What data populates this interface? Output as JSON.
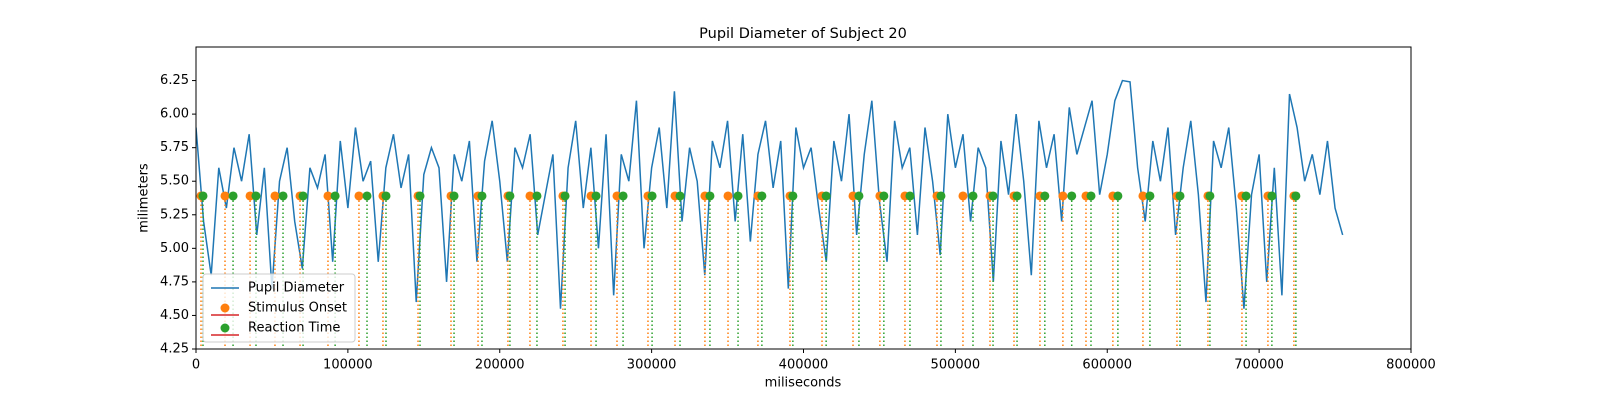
{
  "chart_data": {
    "type": "line",
    "title": "Pupil Diameter of Subject 20",
    "xlabel": "miliseconds",
    "ylabel": "milimeters",
    "xlim": [
      0,
      800000
    ],
    "ylim": [
      4.25,
      6.5
    ],
    "xticks": [
      0,
      100000,
      200000,
      300000,
      400000,
      500000,
      600000,
      700000,
      800000
    ],
    "yticks": [
      4.25,
      {
        "value": 4.5,
        "label": "4.50"
      },
      4.75,
      {
        "value": 5.0,
        "label": "5.00"
      },
      5.25,
      {
        "value": 5.5,
        "label": "5.50"
      },
      5.75,
      {
        "value": 6.0,
        "label": "6.00"
      },
      6.25
    ],
    "legend": "lower left",
    "baseline_color": "#d62728",
    "series": [
      {
        "name": "Pupil Diameter",
        "style": "line",
        "color": "#1f77b4",
        "x": [
          0,
          5000,
          10000,
          15000,
          20000,
          25000,
          30000,
          35000,
          40000,
          45000,
          50000,
          55000,
          60000,
          65000,
          70000,
          75000,
          80000,
          85000,
          90000,
          95000,
          100000,
          105000,
          110000,
          115000,
          120000,
          125000,
          130000,
          135000,
          140000,
          145000,
          150000,
          155000,
          160000,
          165000,
          170000,
          175000,
          180000,
          185000,
          190000,
          195000,
          200000,
          205000,
          210000,
          215000,
          220000,
          225000,
          230000,
          235000,
          240000,
          245000,
          250000,
          255000,
          260000,
          265000,
          270000,
          275000,
          280000,
          285000,
          290000,
          295000,
          300000,
          305000,
          310000,
          315000,
          320000,
          325000,
          330000,
          335000,
          340000,
          345000,
          350000,
          355000,
          360000,
          365000,
          370000,
          375000,
          380000,
          385000,
          390000,
          395000,
          400000,
          405000,
          410000,
          415000,
          420000,
          425000,
          430000,
          435000,
          440000,
          445000,
          450000,
          455000,
          460000,
          465000,
          470000,
          475000,
          480000,
          485000,
          490000,
          495000,
          500000,
          505000,
          510000,
          515000,
          520000,
          525000,
          530000,
          535000,
          540000,
          545000,
          550000,
          555000,
          560000,
          565000,
          570000,
          575000,
          580000,
          585000,
          590000,
          595000,
          600000,
          605000,
          610000,
          615000,
          620000,
          625000,
          630000,
          635000,
          640000,
          645000,
          650000,
          655000,
          660000,
          665000,
          670000,
          675000,
          680000,
          685000,
          690000,
          695000,
          700000,
          705000,
          710000,
          715000,
          720000,
          725000,
          730000,
          735000,
          740000,
          745000,
          750000,
          755000
        ],
        "values": [
          5.9,
          5.2,
          4.8,
          5.6,
          5.3,
          5.75,
          5.5,
          5.85,
          5.1,
          5.6,
          4.7,
          5.5,
          5.75,
          5.2,
          4.85,
          5.6,
          5.45,
          5.7,
          4.9,
          5.8,
          5.3,
          5.9,
          5.5,
          5.65,
          4.9,
          5.6,
          5.85,
          5.45,
          5.7,
          4.6,
          5.55,
          5.75,
          5.6,
          4.75,
          5.7,
          5.5,
          5.8,
          4.9,
          5.65,
          5.95,
          5.5,
          4.9,
          5.75,
          5.6,
          5.85,
          5.1,
          5.4,
          5.7,
          4.55,
          5.6,
          5.95,
          5.3,
          5.75,
          5.0,
          5.85,
          4.65,
          5.7,
          5.5,
          6.1,
          5.0,
          5.6,
          5.9,
          5.3,
          6.17,
          5.2,
          5.75,
          5.5,
          4.8,
          5.8,
          5.6,
          5.95,
          5.2,
          5.85,
          5.05,
          5.7,
          5.95,
          5.45,
          5.8,
          4.7,
          5.9,
          5.6,
          5.75,
          5.3,
          4.9,
          5.8,
          5.5,
          6.0,
          5.1,
          5.7,
          6.1,
          5.35,
          4.9,
          5.95,
          5.6,
          5.75,
          5.1,
          5.9,
          5.5,
          4.95,
          6.0,
          5.6,
          5.85,
          5.2,
          5.75,
          5.6,
          4.75,
          5.8,
          5.4,
          6.0,
          5.5,
          4.8,
          5.95,
          5.6,
          5.85,
          5.2,
          6.05,
          5.7,
          5.9,
          6.1,
          5.4,
          5.7,
          6.1,
          6.25,
          6.24,
          5.6,
          5.2,
          5.8,
          5.5,
          5.9,
          5.1,
          5.6,
          5.95,
          5.4,
          4.6,
          5.8,
          5.6,
          5.9,
          5.3,
          4.55,
          5.4,
          5.7,
          4.75,
          5.6,
          4.65,
          6.15,
          5.9,
          5.5,
          5.7,
          5.4,
          5.8,
          5.3,
          5.1
        ]
      },
      {
        "name": "Stimulus Onset",
        "style": "stem",
        "color": "#ff7f0e",
        "x": [
          3300,
          19100,
          35600,
          52000,
          68500,
          86900,
          107300,
          123100,
          146200,
          167900,
          185700,
          205400,
          219900,
          241600,
          260100,
          277200,
          297600,
          315400,
          335100,
          350300,
          370000,
          391100,
          412200,
          432600,
          450300,
          466800,
          487900,
          505000,
          522800,
          538600,
          555700,
          570800,
          586000,
          603700,
          623500,
          645900,
          666300,
          688700,
          705800,
          722900
        ],
        "values": [
          5.39,
          5.39,
          5.39,
          5.39,
          5.39,
          5.39,
          5.39,
          5.39,
          5.39,
          5.39,
          5.39,
          5.39,
          5.39,
          5.39,
          5.39,
          5.39,
          5.39,
          5.39,
          5.39,
          5.39,
          5.39,
          5.39,
          5.39,
          5.39,
          5.39,
          5.39,
          5.39,
          5.39,
          5.39,
          5.39,
          5.39,
          5.39,
          5.39,
          5.39,
          5.39,
          5.39,
          5.39,
          5.39,
          5.39,
          5.39
        ]
      },
      {
        "name": "Reaction Time",
        "style": "stem",
        "color": "#2ca02c",
        "x": [
          4600,
          24400,
          39500,
          57300,
          70500,
          91600,
          112600,
          125100,
          147500,
          169900,
          188300,
          206700,
          224500,
          243000,
          263400,
          281200,
          300300,
          318700,
          338400,
          356900,
          372600,
          393000,
          414900,
          436500,
          452900,
          470100,
          490500,
          511600,
          524800,
          540600,
          558900,
          576600,
          589300,
          607000,
          628100,
          647900,
          667600,
          691400,
          708400,
          724200
        ],
        "values": [
          5.39,
          5.39,
          5.39,
          5.39,
          5.39,
          5.39,
          5.39,
          5.39,
          5.39,
          5.39,
          5.39,
          5.39,
          5.39,
          5.39,
          5.39,
          5.39,
          5.39,
          5.39,
          5.39,
          5.39,
          5.39,
          5.39,
          5.39,
          5.39,
          5.39,
          5.39,
          5.39,
          5.39,
          5.39,
          5.39,
          5.39,
          5.39,
          5.39,
          5.39,
          5.39,
          5.39,
          5.39,
          5.39,
          5.39,
          5.39
        ]
      }
    ]
  }
}
